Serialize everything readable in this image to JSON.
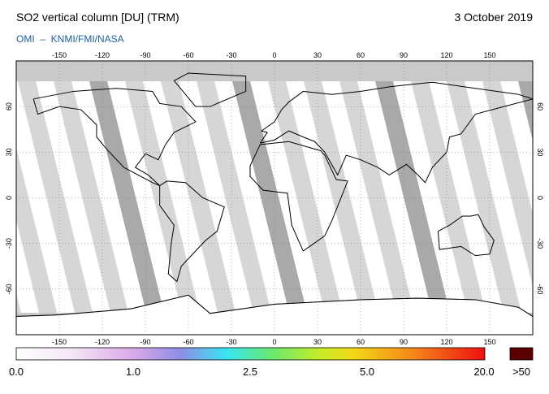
{
  "header": {
    "title": "SO2 vertical column [DU] (TRM)",
    "date": "3 October 2019",
    "credit": "OMI  –  KNMI/FMI/NASA"
  },
  "map": {
    "lon_ticks": [
      -150,
      -120,
      -90,
      -60,
      -30,
      0,
      30,
      60,
      90,
      120,
      150
    ],
    "lat_ticks": [
      -60,
      -30,
      0,
      30,
      60
    ]
  },
  "colorbar": {
    "labels": [
      "0.0",
      "1.0",
      "2.5",
      "5.0",
      "20.0"
    ],
    "overflow_label": ">50"
  }
}
